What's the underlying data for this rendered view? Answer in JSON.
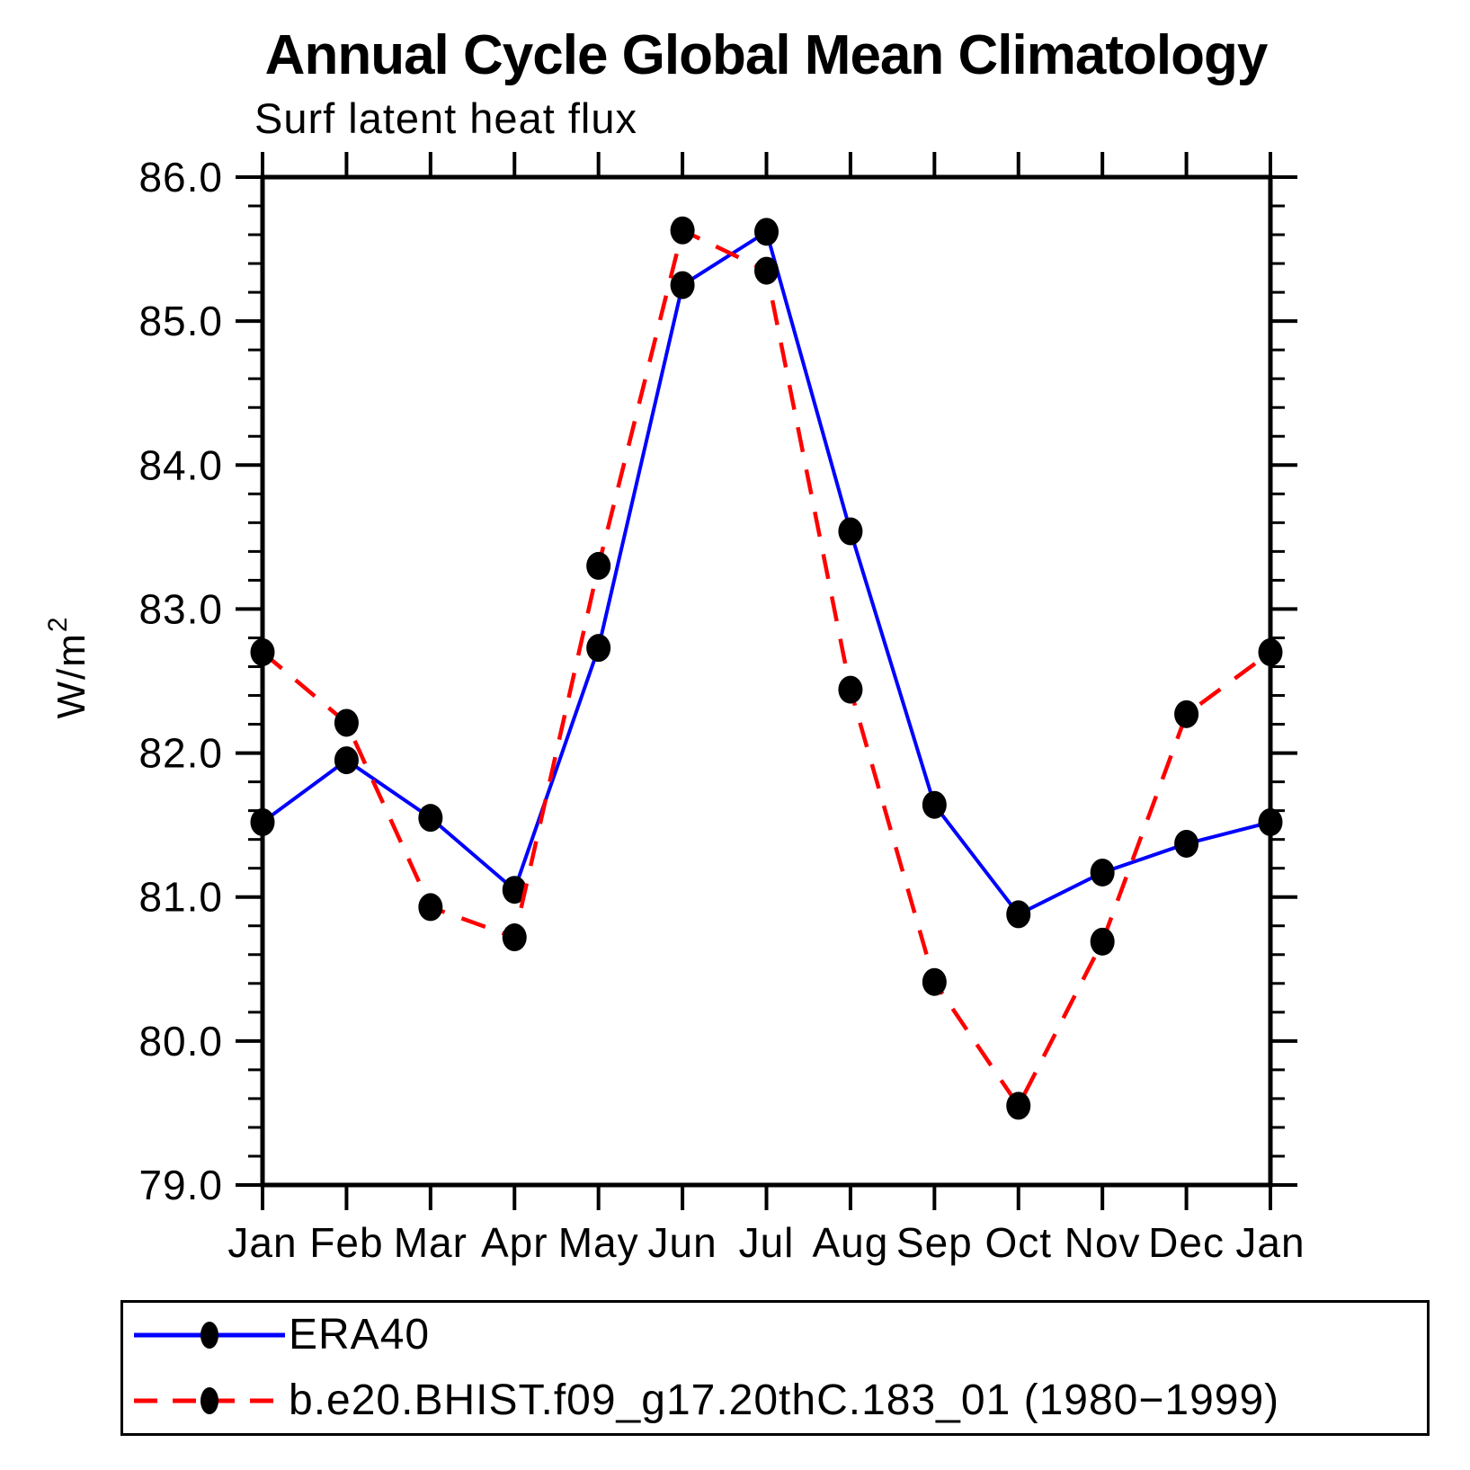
{
  "page": {
    "title": "Annual Cycle Global Mean Climatology",
    "subtitle": "Surf latent heat flux"
  },
  "y_axis": {
    "label_base": "W/m",
    "label_exponent": "2"
  },
  "chart_data": {
    "type": "line",
    "title": "Annual Cycle Global Mean Climatology",
    "subtitle": "Surf latent heat flux",
    "ylabel": "W/m²",
    "xlabel": "",
    "categories": [
      "Jan",
      "Feb",
      "Mar",
      "Apr",
      "May",
      "Jun",
      "Jul",
      "Aug",
      "Sep",
      "Oct",
      "Nov",
      "Dec",
      "Jan"
    ],
    "ylim": [
      79.0,
      86.0
    ],
    "ytick_interval": 1.0,
    "yminor_interval": 0.2,
    "ytick_labels": [
      "86.0",
      "85.0",
      "84.0",
      "83.0",
      "82.0",
      "81.0",
      "80.0",
      "79.0"
    ],
    "grid": "off",
    "legend_position": "bottom-box",
    "axis_color": "#000000",
    "marker_color": "#000000",
    "series": [
      {
        "name": "ERA40",
        "color": "#0000ff",
        "line_style": "solid",
        "marker": "filled-circle",
        "values": [
          81.52,
          81.95,
          81.55,
          81.05,
          82.73,
          85.25,
          85.62,
          83.54,
          81.64,
          80.88,
          81.17,
          81.37,
          81.52
        ]
      },
      {
        "name": "b.e20.BHIST.f09_g17.20thC.183_01 (1980−1999)",
        "color": "#ff0000",
        "line_style": "dashed",
        "marker": "filled-circle",
        "values": [
          82.7,
          82.21,
          80.93,
          80.72,
          83.3,
          85.63,
          85.35,
          82.44,
          80.41,
          79.55,
          80.69,
          82.27,
          82.7
        ]
      }
    ]
  }
}
